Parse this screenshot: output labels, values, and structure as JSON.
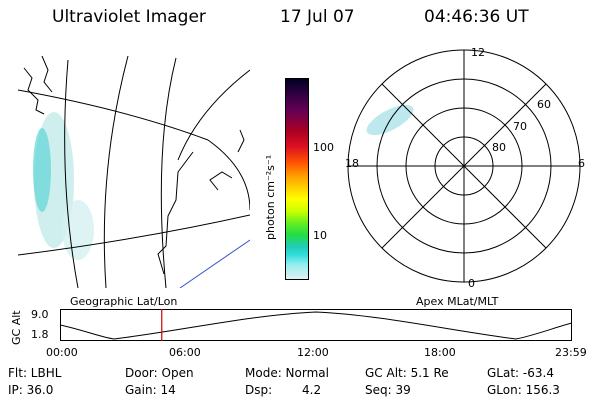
{
  "header": {
    "title": "Ultraviolet Imager",
    "date": "17 Jul 07",
    "time": "04:46:36 UT"
  },
  "colorbar": {
    "unit_label": "photon cm⁻²s⁻¹",
    "ticks": [
      "100",
      "10"
    ],
    "scale": "log",
    "colors": [
      "#000033",
      "#330044",
      "#660055",
      "#aa0022",
      "#dd1122",
      "#ff5500",
      "#ff9900",
      "#ffcc00",
      "#ffff00",
      "#ccff00",
      "#66ee22",
      "#22dd44",
      "#22ccbb",
      "#33dddd",
      "#88eeee",
      "#bbeeee",
      "#ddf0f0"
    ]
  },
  "map_left": {
    "label": "Geographic Lat/Lon"
  },
  "polar_right": {
    "label": "Apex MLat/MLT",
    "mlt_labels": {
      "top": "12",
      "left": "18",
      "right": "6",
      "bottom": "0"
    },
    "lat_labels": [
      "60",
      "70",
      "80"
    ]
  },
  "altitude_plot": {
    "ylabel": "GC Alt",
    "yticks": [
      "9.0",
      "1.8"
    ],
    "xticks": [
      "00:00",
      "06:00",
      "12:00",
      "18:00",
      "23:59"
    ],
    "marker_time": "04:46",
    "marker_color": "#cc0000"
  },
  "info": {
    "flt": "Flt: LBHL",
    "ip": "IP: 36.0",
    "door": "Door: Open",
    "gain": "Gain: 14",
    "mode": "Mode: Normal",
    "dsp_label": "Dsp:",
    "dsp_value": "4.2",
    "gc_alt": "GC Alt: 5.1 Re",
    "seq": "Seq: 39",
    "glat": "GLat: -63.4",
    "glon": "GLon: 156.3"
  }
}
